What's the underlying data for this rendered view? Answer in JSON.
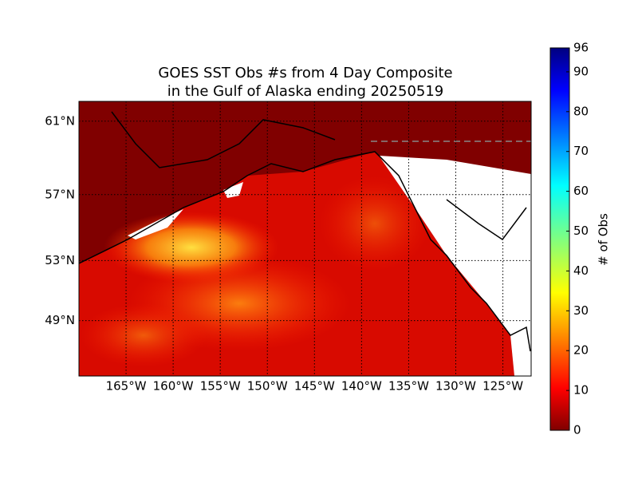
{
  "map": {
    "title": [
      "GOES SST Obs #s from 4 Day Composite",
      "in the Gulf of Alaska ending 20250519"
    ],
    "lon_lim": [
      -170,
      -122
    ],
    "lat_lim": [
      45,
      62
    ],
    "lon_ticks": [
      {
        "value": -165,
        "label": "165°W"
      },
      {
        "value": -160,
        "label": "160°W"
      },
      {
        "value": -155,
        "label": "155°W"
      },
      {
        "value": -150,
        "label": "150°W"
      },
      {
        "value": -145,
        "label": "145°W"
      },
      {
        "value": -140,
        "label": "140°W"
      },
      {
        "value": -135,
        "label": "135°W"
      },
      {
        "value": -130,
        "label": "130°W"
      },
      {
        "value": -125,
        "label": "125°W"
      }
    ],
    "lat_ticks": [
      {
        "value": 61,
        "label": "61°N"
      },
      {
        "value": 57,
        "label": "57°N"
      },
      {
        "value": 53,
        "label": "53°N"
      },
      {
        "value": 49,
        "label": "49°N"
      }
    ],
    "colorbar": {
      "label": "# of Obs",
      "lim": [
        0,
        96
      ],
      "ticks": [
        0,
        10,
        20,
        30,
        40,
        50,
        60,
        70,
        80,
        90,
        96
      ]
    }
  }
}
